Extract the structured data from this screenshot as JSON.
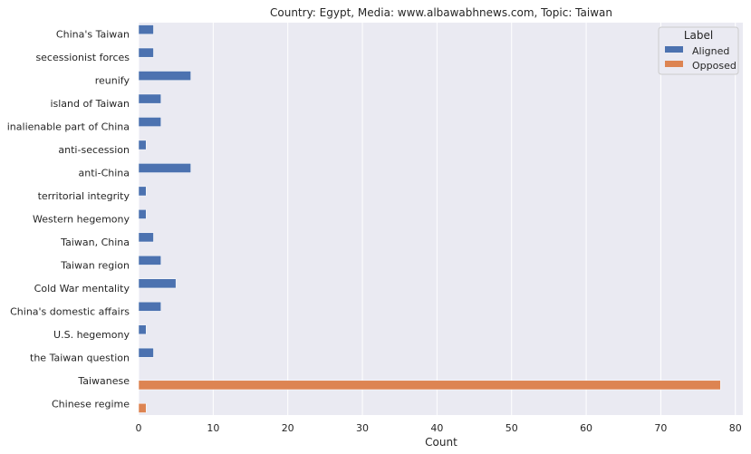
{
  "chart_data": {
    "type": "bar",
    "orientation": "horizontal",
    "title": "Country: Egypt, Media: www.albawabhnews.com, Topic: Taiwan",
    "xlabel": "Count",
    "ylabel": "",
    "xlim": [
      0,
      81
    ],
    "xticks": [
      0,
      10,
      20,
      30,
      40,
      50,
      60,
      70,
      80
    ],
    "grid": true,
    "legend": {
      "title": "Label",
      "placement": "top-right"
    },
    "categories": [
      "China's Taiwan",
      "secessionist forces",
      "reunify",
      "island of Taiwan",
      "inalienable part of China",
      "anti-secession",
      "anti-China",
      "territorial integrity",
      "Western hegemony",
      "Taiwan, China",
      "Taiwan region",
      "Cold War mentality",
      "China's domestic affairs",
      "U.S. hegemony",
      "the Taiwan question",
      "Taiwanese",
      "Chinese regime"
    ],
    "series": [
      {
        "name": "Aligned",
        "color": "#4c72b0",
        "values": [
          2,
          2,
          7,
          3,
          3,
          1,
          7,
          1,
          1,
          2,
          3,
          5,
          3,
          1,
          2,
          0,
          0
        ]
      },
      {
        "name": "Opposed",
        "color": "#dd8452",
        "values": [
          0,
          0,
          0,
          0,
          0,
          0,
          0,
          0,
          0,
          0,
          0,
          0,
          0,
          0,
          0,
          78,
          1
        ]
      }
    ]
  }
}
